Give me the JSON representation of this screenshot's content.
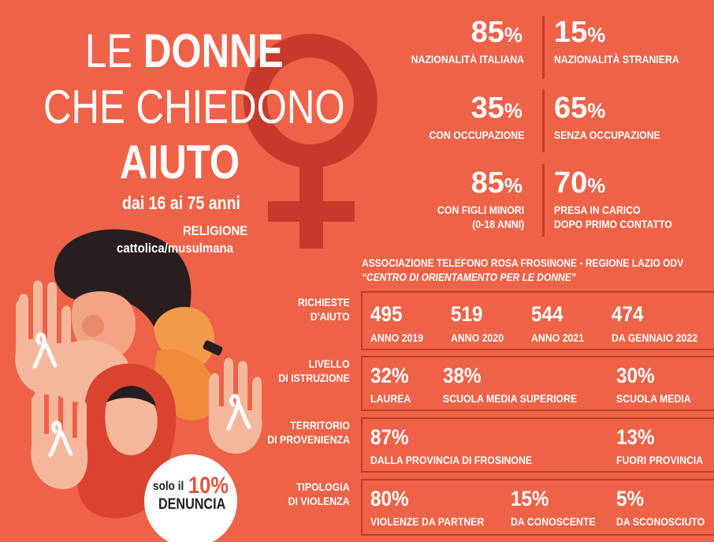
{
  "title": {
    "line1_a": "LE ",
    "line1_b": "DONNE",
    "line2_a": "CHE ",
    "line2_b": "CHIEDONO",
    "line3": "AIUTO",
    "age": "dai 16 ai 75 anni",
    "religion_label": "RELIGIONE",
    "religion_value": "cattolica/musulmana"
  },
  "stats": [
    {
      "num": "85",
      "pct": "%",
      "label1": "NAZIONALITÀ ITALIANA",
      "label2": ""
    },
    {
      "num": "15",
      "pct": "%",
      "label1": "NAZIONALITÀ STRANIERA",
      "label2": ""
    },
    {
      "num": "35",
      "pct": "%",
      "label1": "CON OCCUPAZIONE",
      "label2": ""
    },
    {
      "num": "65",
      "pct": "%",
      "label1": "SENZA OCCUPAZIONE",
      "label2": ""
    },
    {
      "num": "85",
      "pct": "%",
      "label1": "CON FIGLI MINORI",
      "label2": "(0-18 ANNI)"
    },
    {
      "num": "70",
      "pct": "%",
      "label1": "PRESA IN CARICO",
      "label2": "DOPO PRIMO CONTATTO"
    }
  ],
  "association": {
    "line1": "ASSOCIAZIONE TELEFONO ROSA FROSINONE - REGIONE LAZIO ODV",
    "line2": "“CENTRO DI ORIENTAMENTO PER LE DONNE”"
  },
  "rows": {
    "requests": {
      "label1": "RICHIESTE",
      "label2": "D'AIUTO",
      "cells": [
        {
          "num": "495",
          "lbl": "ANNO 2019"
        },
        {
          "num": "519",
          "lbl": "ANNO 2020"
        },
        {
          "num": "544",
          "lbl": "ANNO 2021"
        },
        {
          "num": "474",
          "lbl": "DA GENNAIO 2022"
        }
      ]
    },
    "education": {
      "label1": "LIVELLO",
      "label2": "DI ISTRUZIONE",
      "cells": [
        {
          "num": "32%",
          "lbl": "LAUREA"
        },
        {
          "num": "38%",
          "lbl": "SCUOLA MEDIA SUPERIORE"
        },
        {
          "num": "30%",
          "lbl": "SCUOLA MEDIA"
        }
      ]
    },
    "territory": {
      "label1": "TERRITORIO",
      "label2": "DI PROVENIENZA",
      "cells": [
        {
          "num": "87%",
          "lbl": "DALLA PROVINCIA DI FROSINONE"
        },
        {
          "num": "13%",
          "lbl": "FUORI PROVINCIA"
        }
      ]
    },
    "violence": {
      "label1": "TIPOLOGIA",
      "label2": "DI VIOLENZA",
      "cells": [
        {
          "num": "80%",
          "lbl": "VIOLENZE DA PARTNER"
        },
        {
          "num": "15%",
          "lbl": "DA CONOSCENTE"
        },
        {
          "num": "5%",
          "lbl": "DA SCONOSCIUTO"
        }
      ]
    }
  },
  "badge": {
    "pre": "solo il",
    "pct": "10%",
    "word": "DENUNCIA"
  },
  "colors": {
    "background": "#ee6248",
    "venus_symbol": "#c73a2b",
    "text": "#ffffff"
  }
}
